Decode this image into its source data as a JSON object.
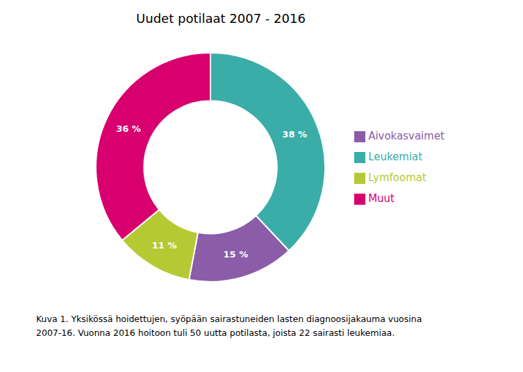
{
  "chart_data": {
    "type": "pie",
    "title": "Uudet potilaat 2007 - 2016",
    "categories": [
      "Leukemiat",
      "Aivokasvaimet",
      "Lymfoomat",
      "Muut"
    ],
    "values": [
      38,
      15,
      11,
      36
    ],
    "value_labels": [
      "38 %",
      "15 %",
      "11 %",
      "36 %"
    ],
    "colors": [
      "#3aada8",
      "#8b5ca8",
      "#b5c934",
      "#d8006e"
    ],
    "data_labels": true,
    "legend": "right",
    "annotations": [
      "Kuva 1. Yksikössä hoidettujen, syöpään sairastuneiden lasten diagnoosijakauma vuosina",
      "2007-16. Vuonna 2016 hoitoon tuli 50 uutta potilasta, joista 22 sairasti leukemiaa."
    ]
  }
}
